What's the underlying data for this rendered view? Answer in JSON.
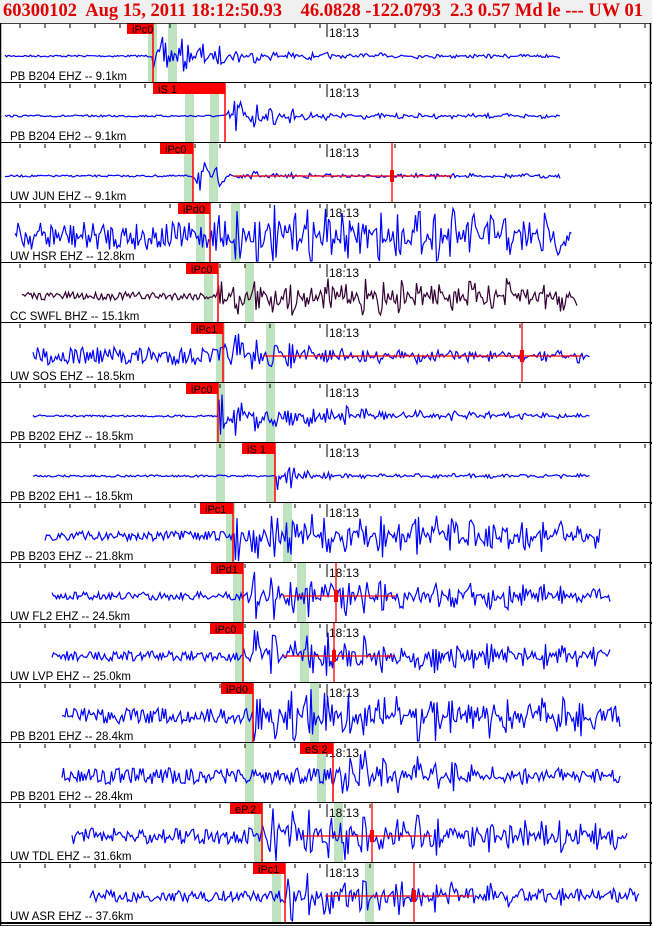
{
  "header": {
    "event_id": "60300102",
    "datetime": "Aug 15, 2011 18:12:50.93",
    "location": "46.0828 -122.0793",
    "magnitude": "2.3 0.57 Md le ---",
    "network": "UW 01",
    "overflow": "3"
  },
  "colors": {
    "trace": "#0000ff",
    "trace_alt": "#330033",
    "pick": "#ff0000",
    "band": "#bfe3bf",
    "header_text": "#e00000"
  },
  "time_label": "18:13",
  "panels": [
    {
      "station": "PB B204 EHZ -- 9.1km",
      "pick": "iPc0"
    },
    {
      "station": "PB B204 EH2 -- 9.1km",
      "pick": "iS 1"
    },
    {
      "station": "UW JUN EHZ -- 9.1km",
      "pick": "iPc0"
    },
    {
      "station": "UW HSR EHZ -- 12.8km",
      "pick": "iPd0"
    },
    {
      "station": "CC SWFL BHZ -- 15.1km",
      "pick": "iPc0"
    },
    {
      "station": "UW SOS EHZ -- 18.5km",
      "pick": "iPc1"
    },
    {
      "station": "PB B202 EHZ -- 18.5km",
      "pick": "iPc0"
    },
    {
      "station": "PB B202 EH1 -- 18.5km",
      "pick": "iS 1"
    },
    {
      "station": "PB B203 EHZ -- 21.8km",
      "pick": "iPc1"
    },
    {
      "station": "UW FL2 EHZ -- 24.5km",
      "pick": "iPd1"
    },
    {
      "station": "UW LVP EHZ -- 25.0km",
      "pick": "iPc0"
    },
    {
      "station": "PB B201 EHZ -- 28.4km",
      "pick": "iPd0"
    },
    {
      "station": "PB B201 EH2 -- 28.4km",
      "pick": "eS 2"
    },
    {
      "station": "UW TDL EHZ -- 31.6km",
      "pick": "eP.2"
    },
    {
      "station": "UW ASR EHZ -- 37.6km",
      "pick": "iPc1"
    }
  ]
}
